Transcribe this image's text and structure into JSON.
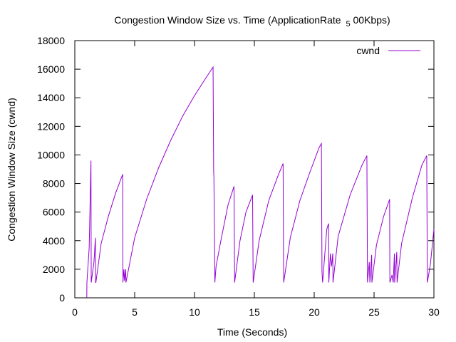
{
  "chart_data": {
    "type": "line",
    "title": "Congestion Window Size vs. Time (ApplicationRate 5 00Kbps)",
    "title_parts": {
      "pre": "Congestion Window Size vs. Time (ApplicationRate",
      "sub": "5",
      "post": "00Kbps)"
    },
    "xlabel": "Time (Seconds)",
    "ylabel": "Congestion Window Size (cwnd)",
    "xlim": [
      0,
      30
    ],
    "ylim": [
      0,
      18000
    ],
    "xticks": [
      0,
      5,
      10,
      15,
      20,
      25,
      30
    ],
    "yticks": [
      0,
      2000,
      4000,
      6000,
      8000,
      10000,
      12000,
      14000,
      16000,
      18000
    ],
    "grid": false,
    "legend": {
      "position": "top-right"
    },
    "series": [
      {
        "name": "cwnd",
        "color": "#9400d3",
        "points": [
          [
            1.0,
            0
          ],
          [
            1.01,
            1072
          ],
          [
            1.2,
            3500
          ],
          [
            1.35,
            9600
          ],
          [
            1.37,
            1072
          ],
          [
            1.6,
            2500
          ],
          [
            1.72,
            4200
          ],
          [
            1.74,
            1072
          ],
          [
            1.76,
            1072
          ],
          [
            2.2,
            3800
          ],
          [
            2.8,
            5700
          ],
          [
            3.4,
            7300
          ],
          [
            4.0,
            8650
          ],
          [
            4.02,
            1072
          ],
          [
            4.1,
            2000
          ],
          [
            4.15,
            1200
          ],
          [
            4.25,
            2000
          ],
          [
            4.27,
            1072
          ],
          [
            5.0,
            4200
          ],
          [
            6.0,
            6900
          ],
          [
            7.0,
            9100
          ],
          [
            8.0,
            11000
          ],
          [
            9.0,
            12700
          ],
          [
            10.0,
            14150
          ],
          [
            11.0,
            15450
          ],
          [
            11.55,
            16150
          ],
          [
            11.6,
            8800
          ],
          [
            11.62,
            8500
          ],
          [
            11.7,
            1072
          ],
          [
            11.8,
            2200
          ],
          [
            12.2,
            4000
          ],
          [
            12.8,
            6500
          ],
          [
            13.3,
            7800
          ],
          [
            13.35,
            1072
          ],
          [
            13.8,
            4000
          ],
          [
            14.3,
            6000
          ],
          [
            14.85,
            7200
          ],
          [
            14.9,
            1072
          ],
          [
            15.4,
            4000
          ],
          [
            16.2,
            6800
          ],
          [
            17.0,
            8600
          ],
          [
            17.4,
            9400
          ],
          [
            17.45,
            1072
          ],
          [
            18.0,
            4200
          ],
          [
            18.8,
            6800
          ],
          [
            19.6,
            8700
          ],
          [
            20.4,
            10500
          ],
          [
            20.6,
            10800
          ],
          [
            20.65,
            1800
          ],
          [
            20.7,
            1072
          ],
          [
            21.05,
            4800
          ],
          [
            21.2,
            5200
          ],
          [
            21.22,
            1072
          ],
          [
            21.35,
            3100
          ],
          [
            21.45,
            2200
          ],
          [
            21.55,
            3100
          ],
          [
            21.57,
            1072
          ],
          [
            22.0,
            4300
          ],
          [
            23.0,
            7200
          ],
          [
            24.0,
            9300
          ],
          [
            24.4,
            9950
          ],
          [
            24.45,
            1072
          ],
          [
            24.6,
            2500
          ],
          [
            24.65,
            1072
          ],
          [
            24.8,
            3000
          ],
          [
            24.82,
            1072
          ],
          [
            25.2,
            3700
          ],
          [
            25.8,
            5700
          ],
          [
            26.3,
            6900
          ],
          [
            26.32,
            1072
          ],
          [
            26.5,
            1600
          ],
          [
            26.6,
            1072
          ],
          [
            26.7,
            3100
          ],
          [
            26.72,
            1072
          ],
          [
            26.9,
            3200
          ],
          [
            26.92,
            1072
          ],
          [
            27.3,
            3800
          ],
          [
            28.2,
            7000
          ],
          [
            29.0,
            9300
          ],
          [
            29.4,
            9950
          ],
          [
            29.45,
            1072
          ],
          [
            29.7,
            2300
          ],
          [
            30.0,
            4800
          ]
        ]
      }
    ]
  }
}
